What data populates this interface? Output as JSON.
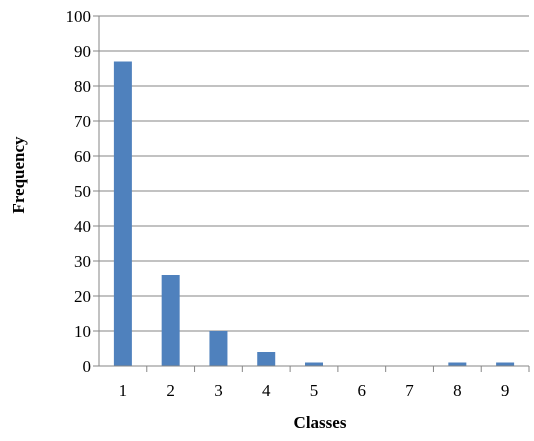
{
  "chart_data": {
    "type": "bar",
    "categories": [
      "1",
      "2",
      "3",
      "4",
      "5",
      "6",
      "7",
      "8",
      "9"
    ],
    "values": [
      87,
      26,
      10,
      4,
      1,
      0,
      0,
      1,
      1
    ],
    "title": "",
    "xlabel": "Classes",
    "ylabel": "Frequency",
    "ylim": [
      0,
      100
    ],
    "yticks": [
      0,
      10,
      20,
      30,
      40,
      50,
      60,
      70,
      80,
      90,
      100
    ],
    "grid": true,
    "legend": "none",
    "colors": {
      "bar": "#4f81bd",
      "grid": "#868686",
      "axis": "#868686"
    }
  }
}
